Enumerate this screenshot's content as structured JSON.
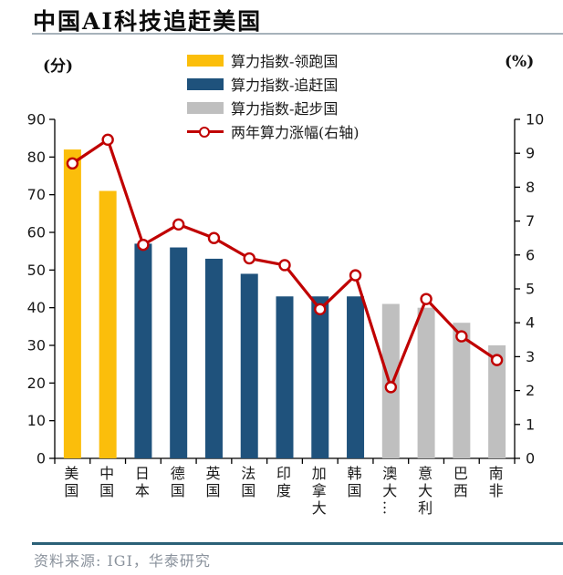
{
  "title": "中国AI科技追赶美国",
  "left_axis_unit": "(分)",
  "right_axis_unit": "(%)",
  "legend": [
    {
      "label": "算力指数-领跑国",
      "type": "swatch",
      "color": "#fbbe0b"
    },
    {
      "label": "算力指数-追赶国",
      "type": "swatch",
      "color": "#1f527c"
    },
    {
      "label": "算力指数-起步国",
      "type": "swatch",
      "color": "#bfbfbf"
    },
    {
      "label": "两年算力涨幅(右轴)",
      "type": "line",
      "color": "#c00000"
    }
  ],
  "source": "资料来源: IGI，华泰研究",
  "colors": {
    "leader": "#fbbe0b",
    "chaser": "#1f527c",
    "starter": "#bfbfbf",
    "line": "#c00000",
    "header_rule": "#a7b2bb",
    "footer_rule": "#2b6077",
    "axis": "#000000",
    "source_text": "#8a929c"
  },
  "chart_data": {
    "type": "bar",
    "title": "中国AI科技追赶美国",
    "categories": [
      "美国",
      "中国",
      "日本",
      "德国",
      "英国",
      "法国",
      "印度",
      "加拿大",
      "韩国",
      "澳大…",
      "意大利",
      "巴西",
      "南非"
    ],
    "series": [
      {
        "name": "算力指数",
        "type": "bar",
        "axis": "left",
        "values": [
          82,
          71,
          57,
          56,
          53,
          49,
          43,
          43,
          43,
          41,
          40,
          36,
          30
        ],
        "groups": [
          "leader",
          "leader",
          "chaser",
          "chaser",
          "chaser",
          "chaser",
          "chaser",
          "chaser",
          "chaser",
          "starter",
          "starter",
          "starter",
          "starter"
        ]
      },
      {
        "name": "两年算力涨幅(右轴)",
        "type": "line",
        "axis": "right",
        "color": "#c00000",
        "marker": "open-circle",
        "values": [
          8.7,
          9.4,
          6.3,
          6.9,
          6.5,
          5.9,
          5.7,
          4.4,
          5.4,
          2.1,
          4.7,
          3.6,
          2.9
        ]
      }
    ],
    "group_colors": {
      "leader": "#fbbe0b",
      "chaser": "#1f527c",
      "starter": "#bfbfbf"
    },
    "left_axis": {
      "label": "(分)",
      "min": 0,
      "max": 90,
      "step": 10
    },
    "right_axis": {
      "label": "(%)",
      "min": 0,
      "max": 10,
      "step": 1
    },
    "grid": false,
    "legend_position": "top"
  }
}
